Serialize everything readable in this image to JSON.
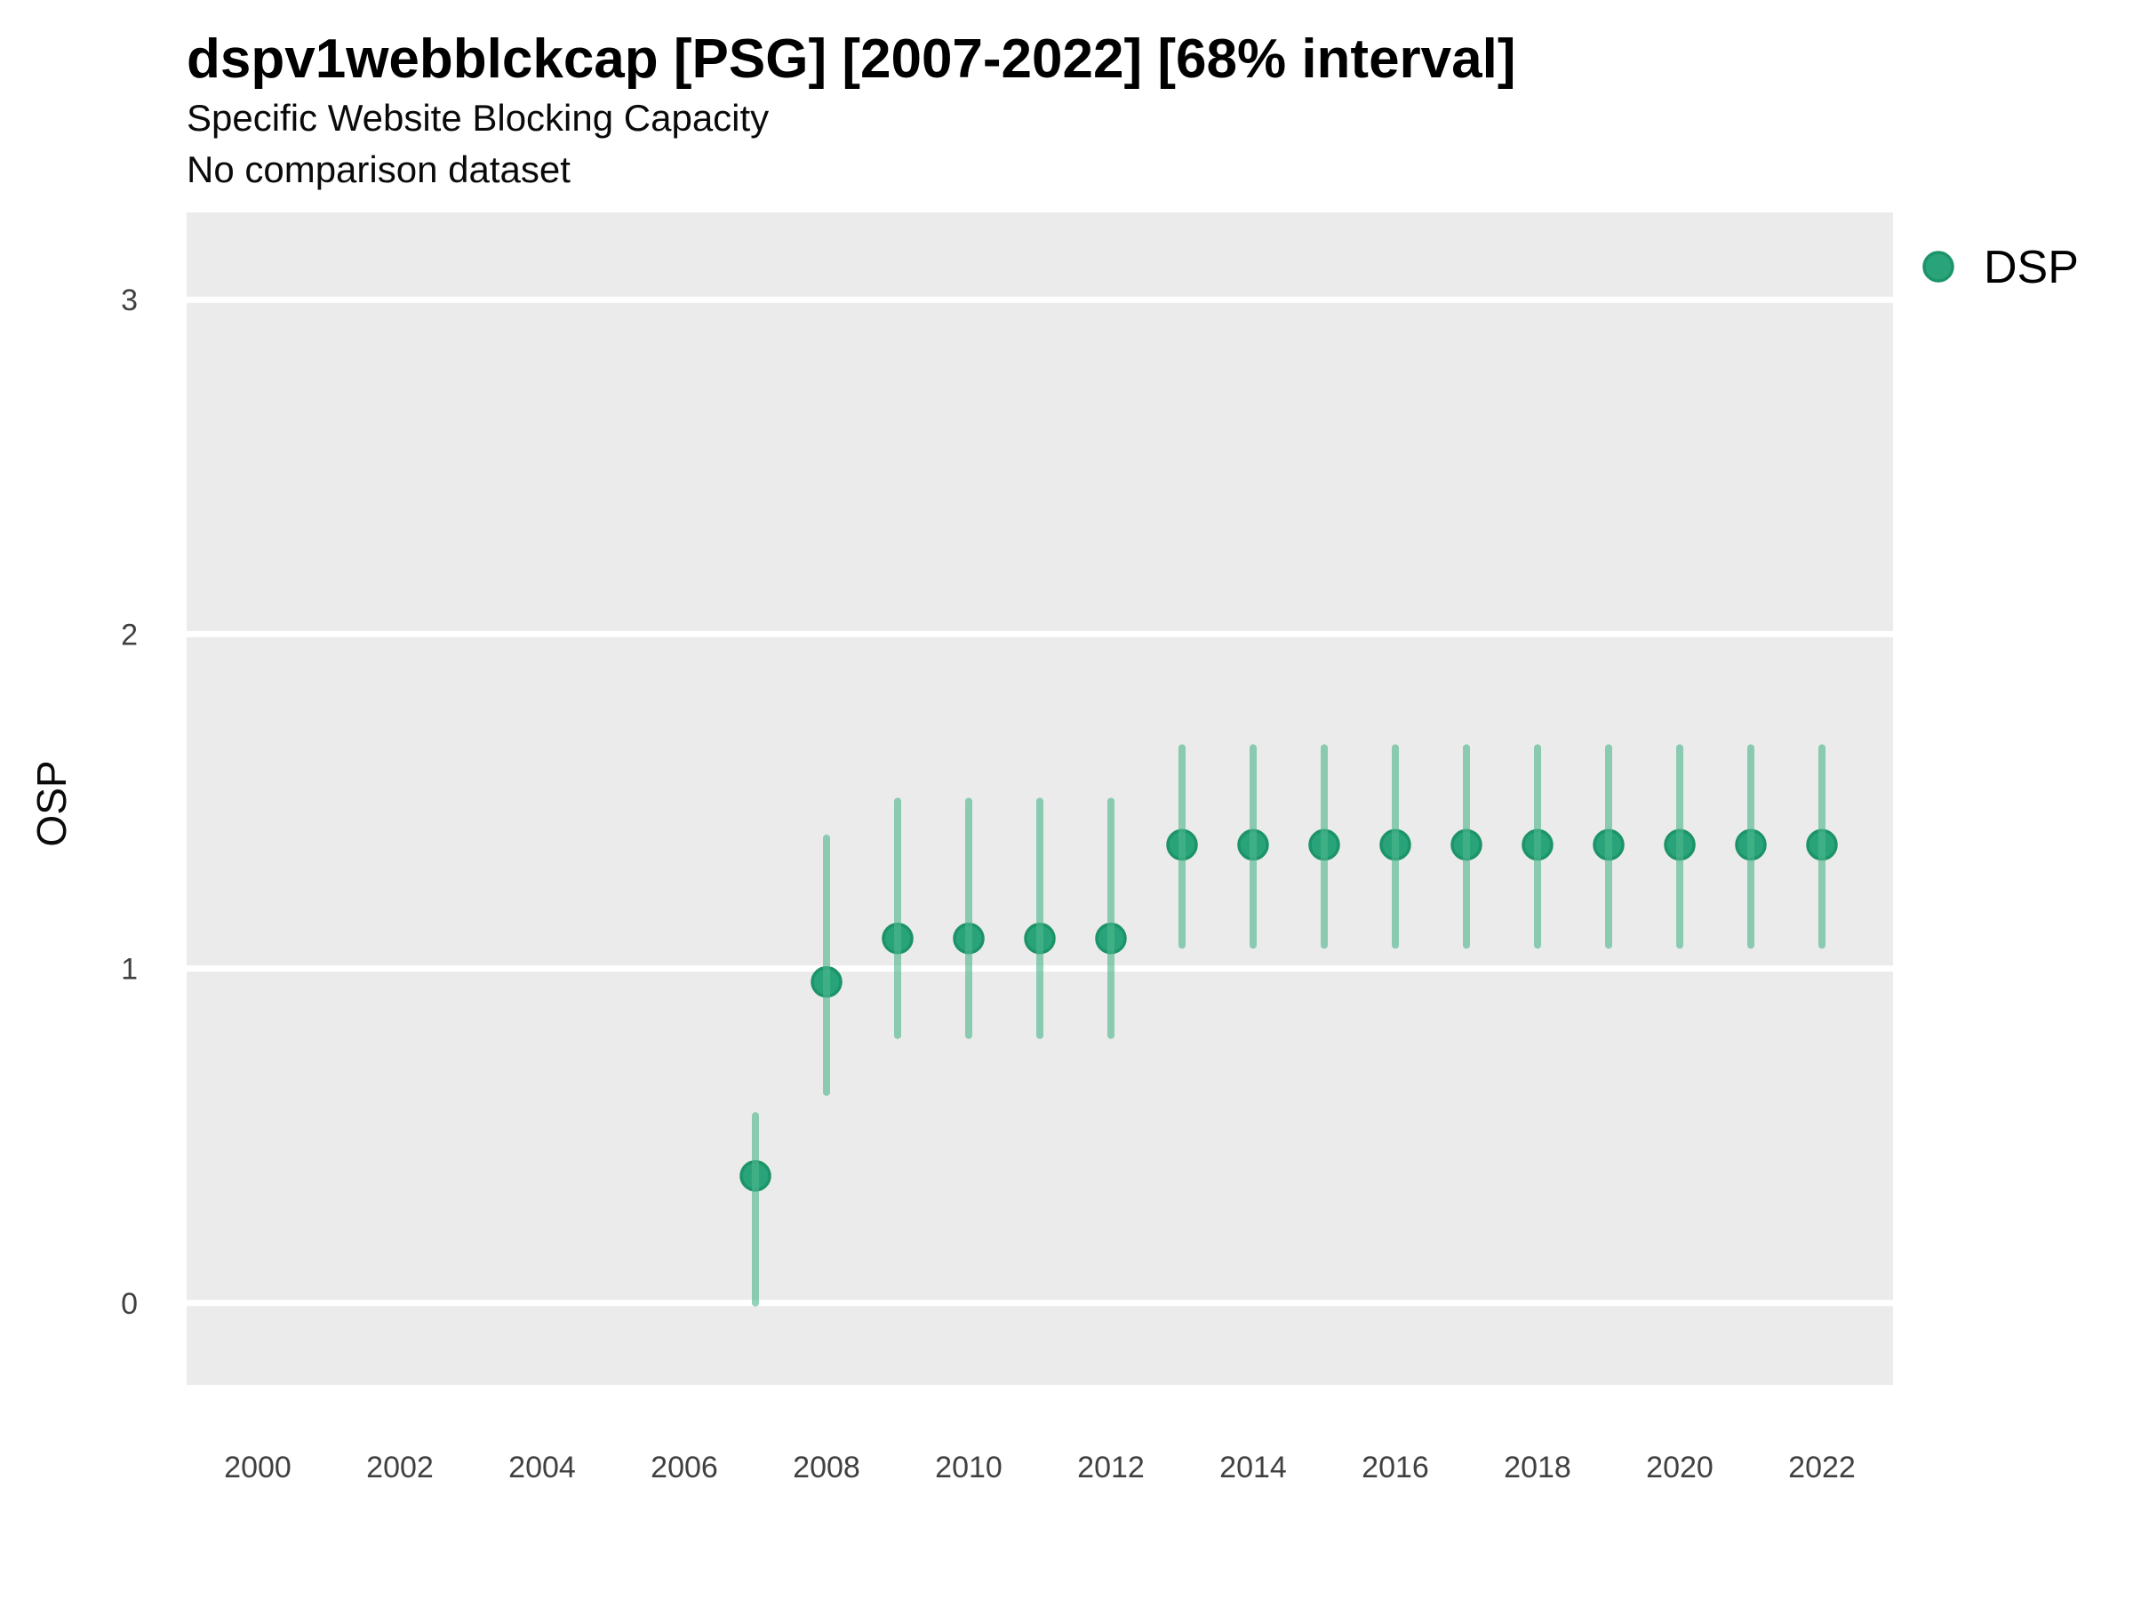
{
  "header": {
    "title": "dspv1webblckcap [PSG] [2007-2022] [68% interval]",
    "subtitle_line1": "Specific Website Blocking Capacity",
    "subtitle_line2": "No comparison dataset"
  },
  "axes": {
    "y_title": "OSP"
  },
  "legend": {
    "items": [
      {
        "label": "DSP",
        "color": "#29A47A",
        "outline": "#1C9467"
      }
    ]
  },
  "colors": {
    "panel_background": "#EBEBEB",
    "gridline": "#FFFFFF",
    "point_fill": "#29A47A",
    "point_stroke": "#1C9467",
    "interval_bar": "rgba(77,182,142,0.62)",
    "tick_text": "#404040"
  },
  "chart_data": {
    "type": "scatter",
    "subtype": "pointrange",
    "title": "dspv1webblckcap [PSG] [2007-2022] [68% interval]",
    "subtitle": "Specific Website Blocking Capacity — No comparison dataset",
    "xlabel": "",
    "ylabel": "OSP",
    "legend_position": "right",
    "grid": "horizontal-major-only",
    "x_range": [
      1999,
      2023
    ],
    "y_range": [
      -0.245,
      3.261
    ],
    "x_ticks": [
      2000,
      2002,
      2004,
      2006,
      2008,
      2010,
      2012,
      2014,
      2016,
      2018,
      2020,
      2022
    ],
    "y_ticks": [
      0,
      1,
      2,
      3
    ],
    "interval_label": "68% interval",
    "series": [
      {
        "name": "DSP",
        "points": [
          {
            "x": 2007,
            "y": 0.38,
            "lo": 0.0,
            "hi": 0.56
          },
          {
            "x": 2008,
            "y": 0.96,
            "lo": 0.63,
            "hi": 1.39
          },
          {
            "x": 2009,
            "y": 1.09,
            "lo": 0.8,
            "hi": 1.5
          },
          {
            "x": 2010,
            "y": 1.09,
            "lo": 0.8,
            "hi": 1.5
          },
          {
            "x": 2011,
            "y": 1.09,
            "lo": 0.8,
            "hi": 1.5
          },
          {
            "x": 2012,
            "y": 1.09,
            "lo": 0.8,
            "hi": 1.5
          },
          {
            "x": 2013,
            "y": 1.37,
            "lo": 1.07,
            "hi": 1.66
          },
          {
            "x": 2014,
            "y": 1.37,
            "lo": 1.07,
            "hi": 1.66
          },
          {
            "x": 2015,
            "y": 1.37,
            "lo": 1.07,
            "hi": 1.66
          },
          {
            "x": 2016,
            "y": 1.37,
            "lo": 1.07,
            "hi": 1.66
          },
          {
            "x": 2017,
            "y": 1.37,
            "lo": 1.07,
            "hi": 1.66
          },
          {
            "x": 2018,
            "y": 1.37,
            "lo": 1.07,
            "hi": 1.66
          },
          {
            "x": 2019,
            "y": 1.37,
            "lo": 1.07,
            "hi": 1.66
          },
          {
            "x": 2020,
            "y": 1.37,
            "lo": 1.07,
            "hi": 1.66
          },
          {
            "x": 2021,
            "y": 1.37,
            "lo": 1.07,
            "hi": 1.66
          },
          {
            "x": 2022,
            "y": 1.37,
            "lo": 1.07,
            "hi": 1.66
          }
        ]
      }
    ]
  }
}
